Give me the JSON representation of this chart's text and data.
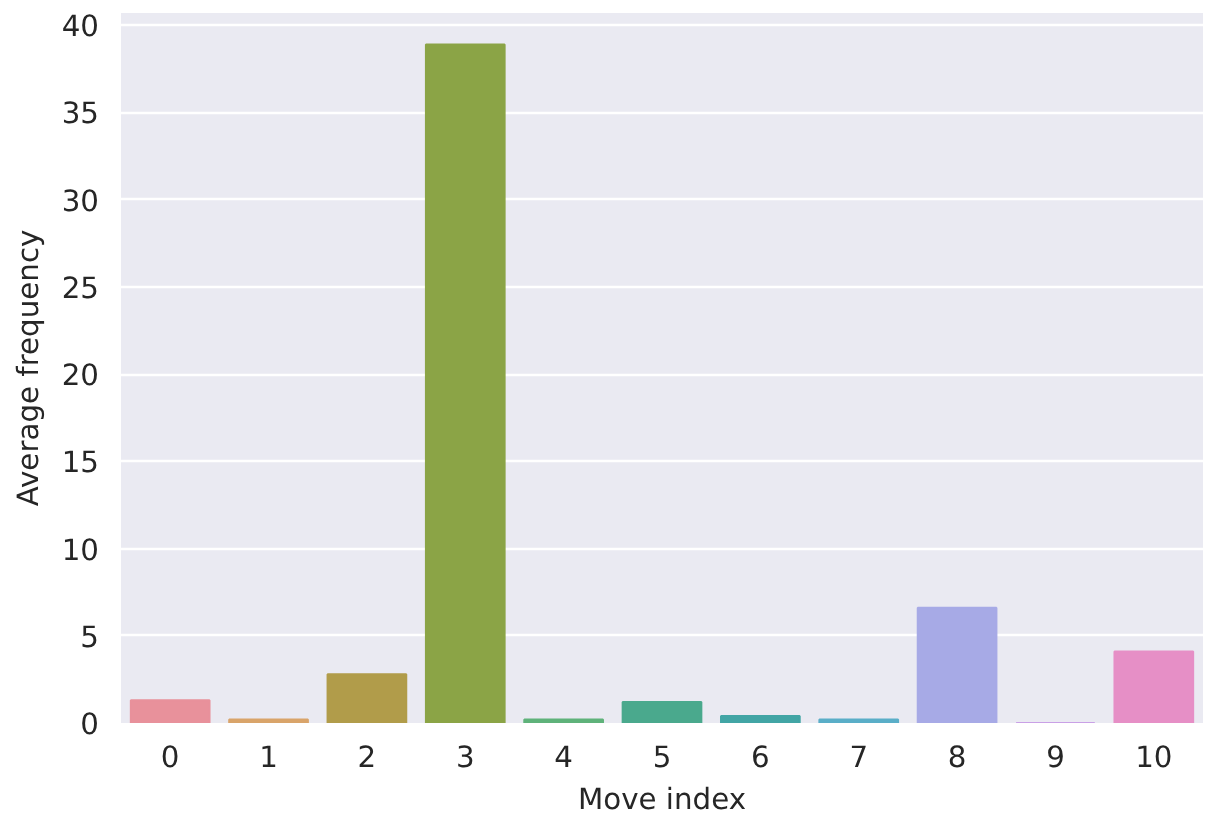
{
  "chart_data": {
    "type": "bar",
    "xlabel": "Move index",
    "ylabel": "Average frequency",
    "categories": [
      "0",
      "1",
      "2",
      "3",
      "4",
      "5",
      "6",
      "7",
      "8",
      "9",
      "10"
    ],
    "values": [
      1.3,
      0.2,
      2.8,
      38.9,
      0.2,
      1.2,
      0.4,
      0.2,
      6.6,
      0,
      4.1
    ],
    "colors": [
      "#e8919b",
      "#d9a46a",
      "#b19c4a",
      "#8ba446",
      "#5fb27a",
      "#4aa98d",
      "#42a5a5",
      "#5aaec8",
      "#a7aae6",
      "#c9a0e6",
      "#e68fc6"
    ],
    "ylim": [
      0,
      40.7
    ],
    "yticks": [
      0,
      5,
      10,
      15,
      20,
      25,
      30,
      35,
      40
    ],
    "grid": "y"
  }
}
